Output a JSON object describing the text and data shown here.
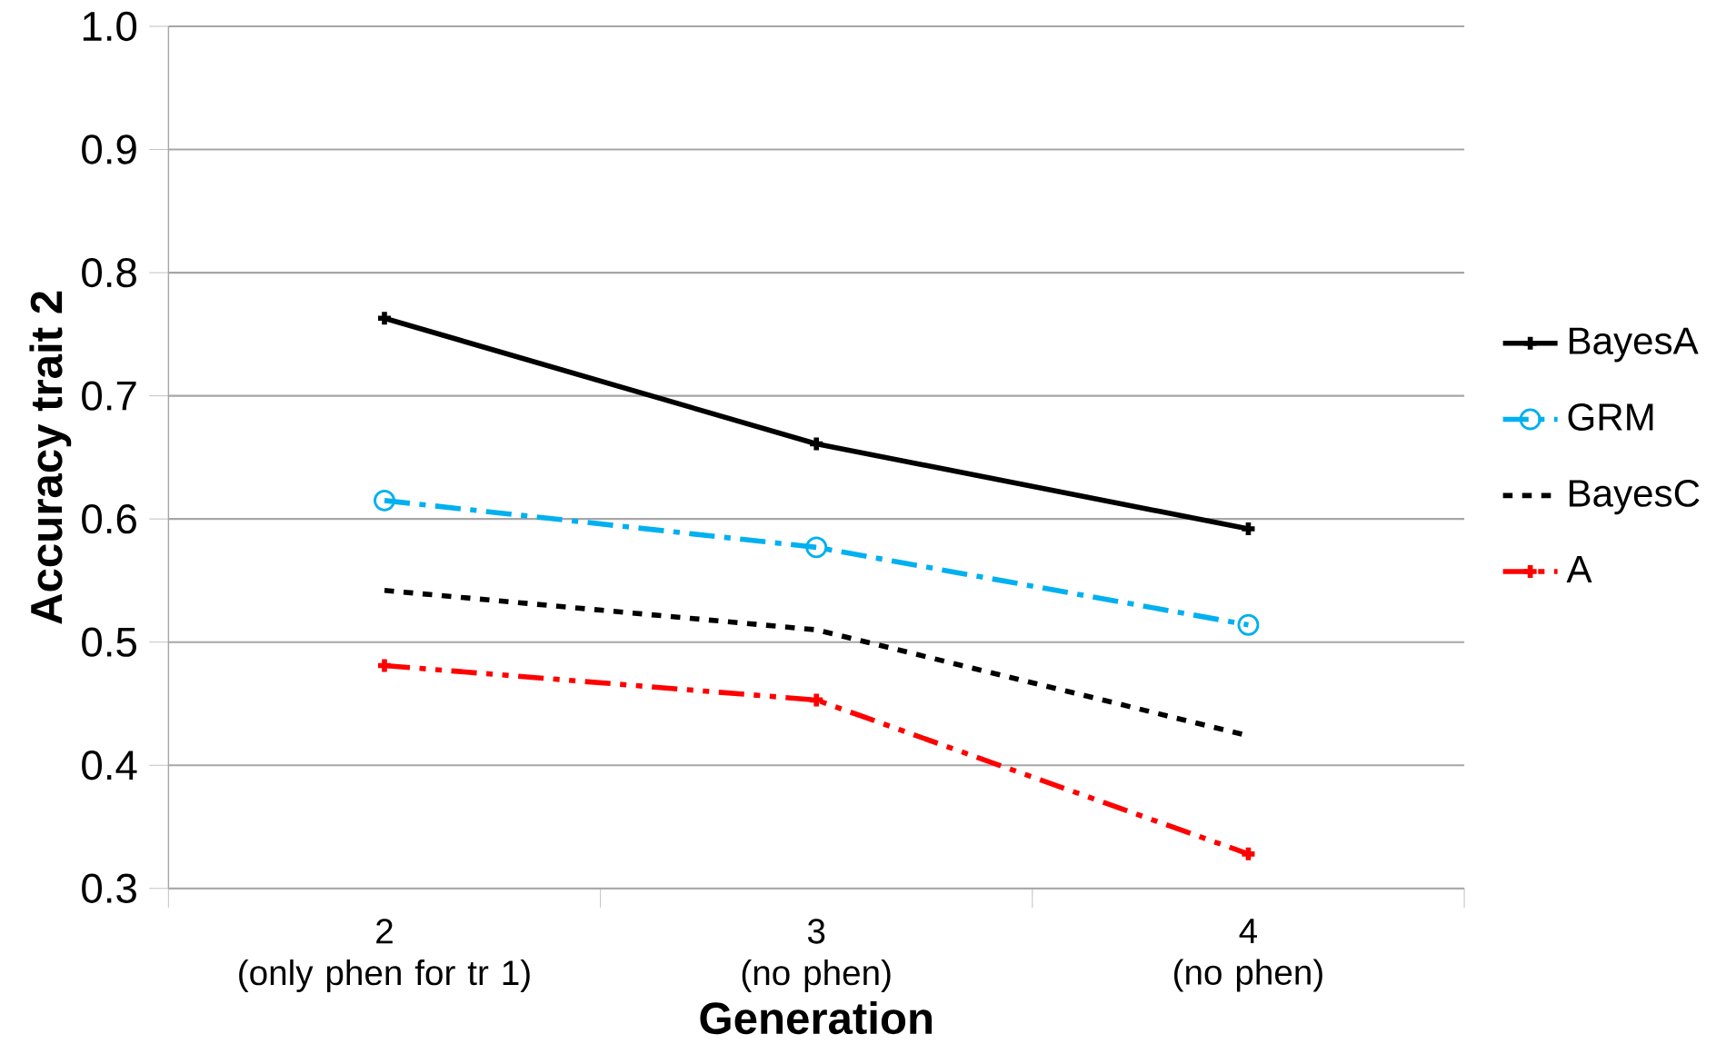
{
  "chart_data": {
    "type": "line",
    "xlabel": "Generation",
    "ylabel": "Accuracy trait 2",
    "categories": [
      "2\n(only phen for tr 1)",
      "3\n(no phen)",
      "4\n(no phen)"
    ],
    "series": [
      {
        "name": "BayesA",
        "color": "#000000",
        "values": [
          0.763,
          0.661,
          0.592
        ],
        "marker": "cross",
        "line_style": "solid"
      },
      {
        "name": "GRM",
        "color": "#00b0f0",
        "values": [
          0.615,
          0.577,
          0.514
        ],
        "marker": "circle",
        "line_style": "dashdot"
      },
      {
        "name": "BayesC",
        "color": "#000000",
        "values": [
          0.542,
          0.51,
          0.424
        ],
        "marker": "none",
        "line_style": "dashed"
      },
      {
        "name": "A",
        "color": "#ff0000",
        "values": [
          0.481,
          0.453,
          0.328
        ],
        "marker": "cross",
        "line_style": "dashdotdot"
      }
    ],
    "ylim": [
      0.3,
      1.0
    ],
    "yticks": [
      {
        "value": 0.3,
        "label": "0.3"
      },
      {
        "value": 0.4,
        "label": "0.4"
      },
      {
        "value": 0.5,
        "label": "0.5"
      },
      {
        "value": 0.6,
        "label": "0.6"
      },
      {
        "value": 0.7,
        "label": "0.7"
      },
      {
        "value": 0.8,
        "label": "0.8"
      },
      {
        "value": 0.9,
        "label": "0.9"
      },
      {
        "value": 1.0,
        "label": "1.0"
      }
    ],
    "grid": "y",
    "legend": "right"
  }
}
